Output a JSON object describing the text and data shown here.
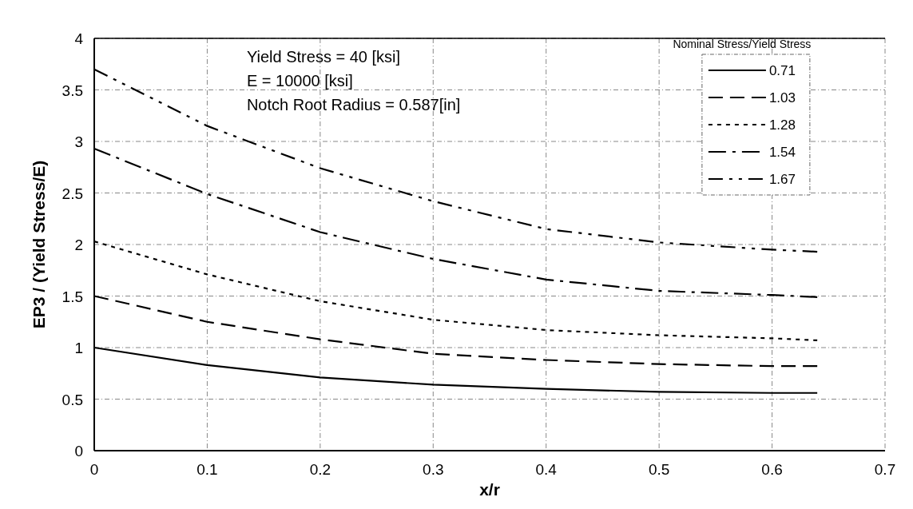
{
  "chart_data": {
    "type": "line",
    "xlabel": "x/r",
    "ylabel": "EP3 / (Yield Stress/E)",
    "legend_title": "Nominal Stress/Yield Stress",
    "annotations": [
      "Yield Stress = 40 [ksi]",
      "E = 10000 [ksi]",
      "Notch Root Radius = 0.587[in]"
    ],
    "x": [
      0,
      0.1,
      0.2,
      0.3,
      0.4,
      0.5,
      0.6,
      0.64
    ],
    "series": [
      {
        "name": "0.71",
        "color": "#000000",
        "line_style": "solid",
        "values": [
          1.0,
          0.83,
          0.71,
          0.64,
          0.6,
          0.57,
          0.56,
          0.56
        ]
      },
      {
        "name": "1.03",
        "color": "#000000",
        "line_style": "dashed",
        "values": [
          1.5,
          1.25,
          1.08,
          0.94,
          0.88,
          0.84,
          0.82,
          0.82
        ]
      },
      {
        "name": "1.28",
        "color": "#000000",
        "line_style": "dotted",
        "values": [
          2.03,
          1.71,
          1.45,
          1.27,
          1.17,
          1.12,
          1.09,
          1.07
        ]
      },
      {
        "name": "1.54",
        "color": "#000000",
        "line_style": "dashed",
        "values": [
          2.93,
          2.49,
          2.12,
          1.86,
          1.66,
          1.55,
          1.51,
          1.49
        ]
      },
      {
        "name": "1.67",
        "color": "#000000",
        "line_style": "dashed",
        "values": [
          3.7,
          3.15,
          2.74,
          2.42,
          2.15,
          2.02,
          1.95,
          1.93
        ]
      }
    ],
    "xlim": [
      0,
      0.7
    ],
    "xticks": [
      0,
      0.1,
      0.2,
      0.3,
      0.4,
      0.5,
      0.6,
      0.7
    ],
    "ylim": [
      0,
      4
    ],
    "yticks": [
      0,
      0.5,
      1,
      1.5,
      2,
      2.5,
      3,
      3.5,
      4
    ],
    "grid": true,
    "legend": "top right"
  }
}
